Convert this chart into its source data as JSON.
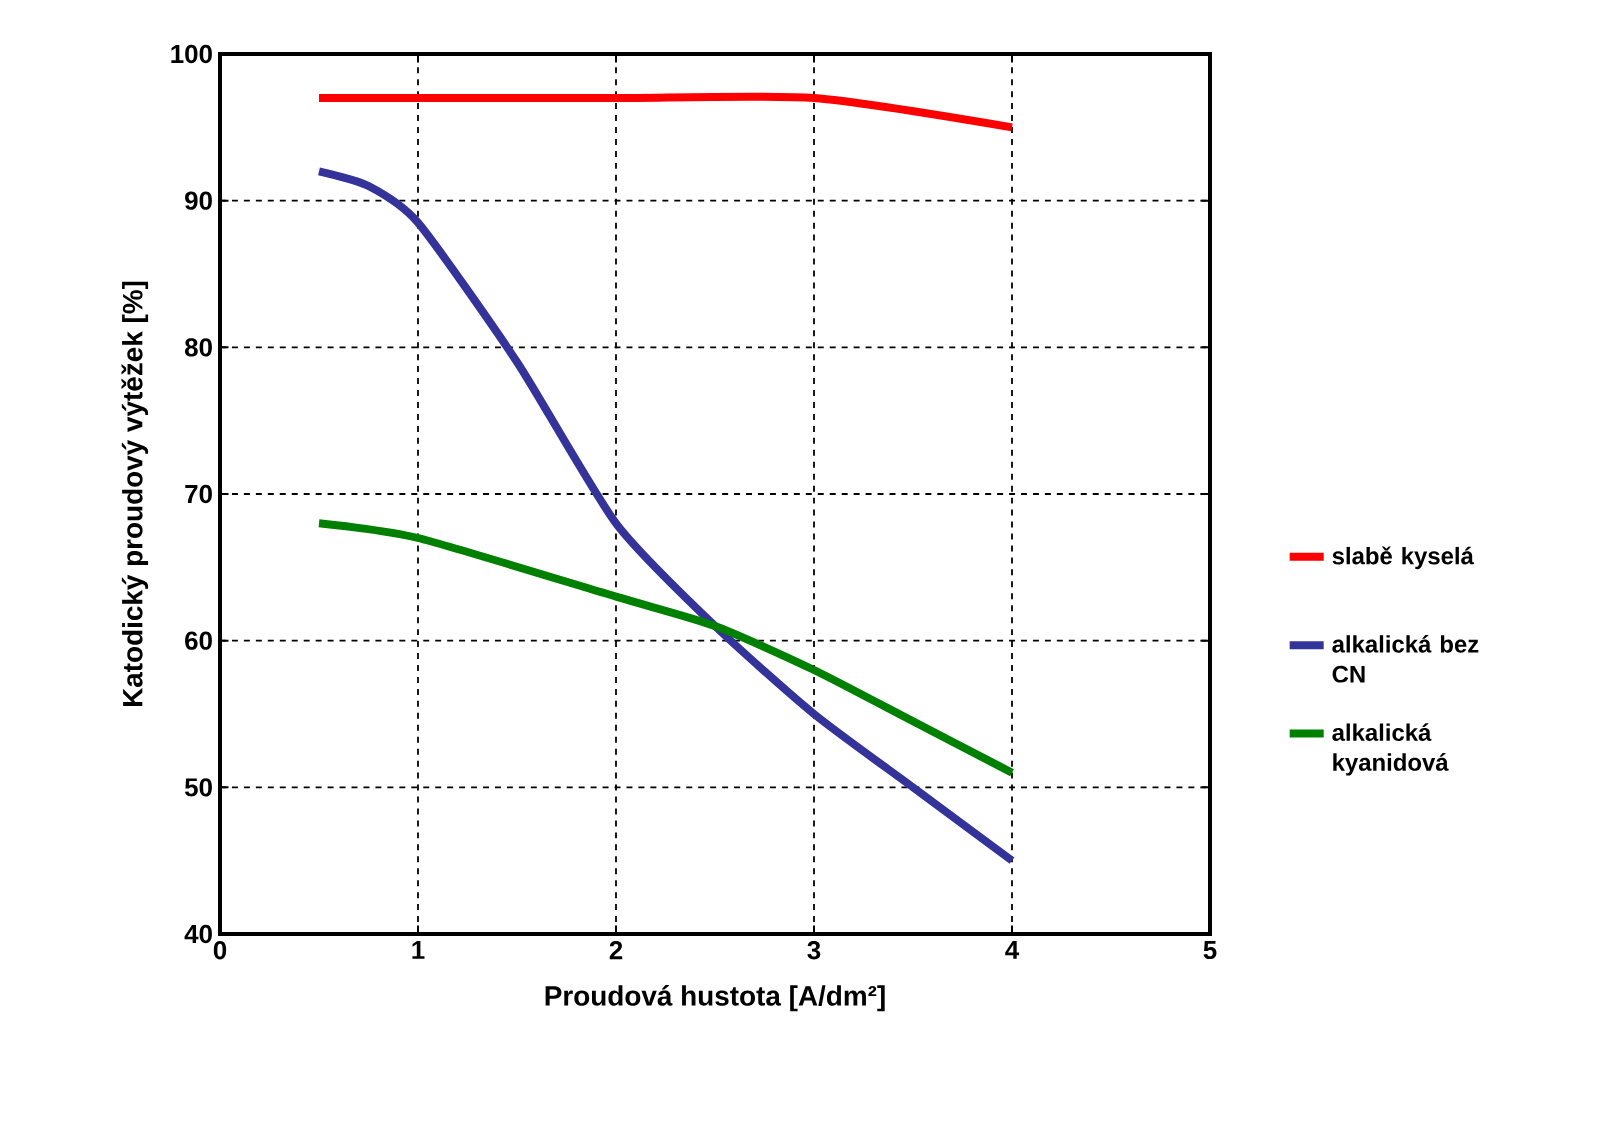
{
  "chart_data": {
    "type": "line",
    "xlabel": "Proudová hustota [A/dm²]",
    "ylabel": "Katodický proudový výtěžek [%]",
    "xlim": [
      0,
      5
    ],
    "xticks": [
      0,
      1,
      2,
      3,
      4,
      5
    ],
    "ylim": [
      40,
      100
    ],
    "yticks": [
      40,
      50,
      60,
      70,
      80,
      90,
      100
    ],
    "grid": true,
    "legend": "right",
    "marker": "none",
    "line_style": "solid",
    "series": [
      {
        "name": "slabě kyselá",
        "color": "#ff0000",
        "x": [
          0.5,
          1,
          2,
          3,
          4
        ],
        "values": [
          97,
          97,
          97,
          97,
          95
        ]
      },
      {
        "name": "alkalická bez CN",
        "color": "#333399",
        "x": [
          0.5,
          0.75,
          1,
          1.5,
          2,
          2.5,
          3,
          3.5,
          4
        ],
        "values": [
          92,
          91,
          88.5,
          79,
          68,
          61,
          55,
          50,
          45
        ]
      },
      {
        "name": "alkalická kyanidová",
        "color": "#008000",
        "x": [
          0.5,
          1,
          2,
          2.5,
          3,
          3.5,
          4
        ],
        "values": [
          68,
          67,
          63,
          61,
          58,
          54.5,
          51
        ]
      }
    ]
  }
}
